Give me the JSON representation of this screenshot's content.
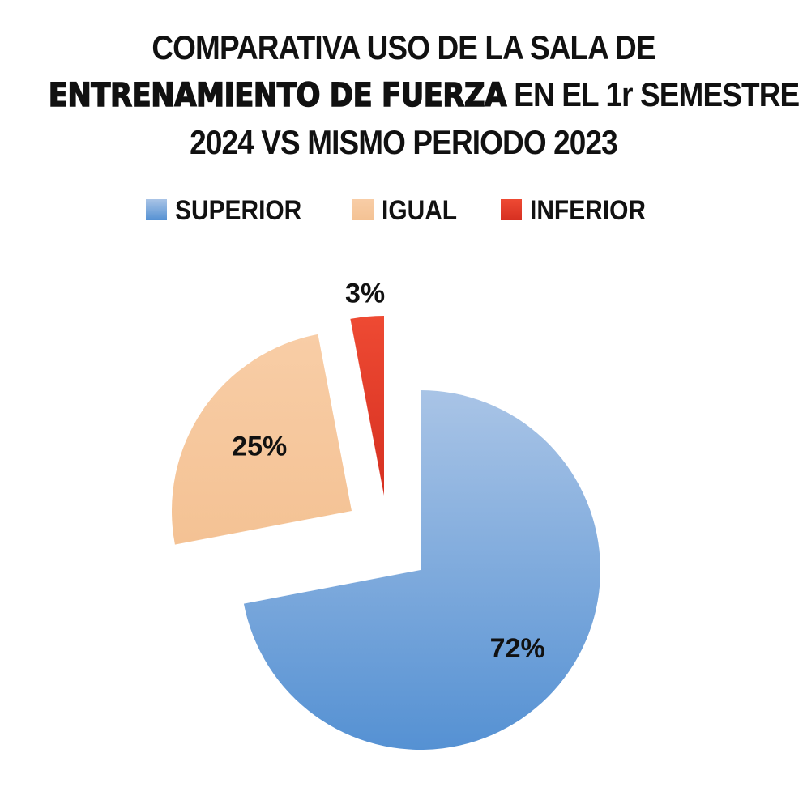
{
  "chart_data": {
    "type": "pie",
    "title": {
      "line1": "COMPARATIVA USO DE LA SALA DE",
      "line2_emphasis": "ENTRENAMIENTO DE FUERZA",
      "line2_rest": " EN EL 1r SEMESTRE",
      "line3": "2024 VS MISMO PERIODO 2023"
    },
    "legend_position": "top",
    "slices": [
      {
        "name": "SUPERIOR",
        "value": 72,
        "label": "72%",
        "color": "#6e9cd6",
        "color_light": "#a9c4e6",
        "color_dark": "#5591d3"
      },
      {
        "name": "IGUAL",
        "value": 25,
        "label": "25%",
        "color": "#f7c9a0",
        "color_light": "#f8cda6",
        "color_dark": "#f4c294"
      },
      {
        "name": "INFERIOR",
        "value": 3,
        "label": "3%",
        "color": "#e63a26",
        "color_light": "#ee4a33",
        "color_dark": "#d63021"
      }
    ],
    "exploded": true
  }
}
